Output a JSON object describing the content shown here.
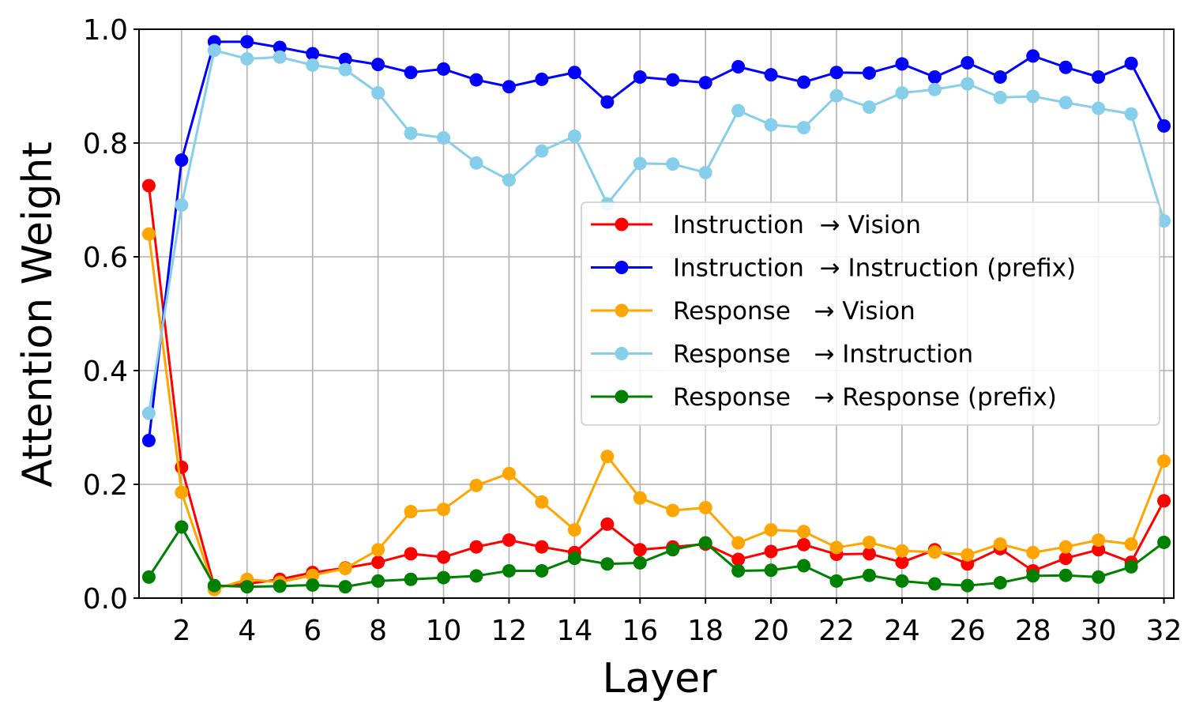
{
  "chart_data": {
    "type": "line",
    "title": "",
    "xlabel": "Layer",
    "ylabel": "Attention Weight",
    "xlim": [
      0.7,
      32.3
    ],
    "ylim": [
      0,
      1.0
    ],
    "x_ticks": [
      2,
      4,
      6,
      8,
      10,
      12,
      14,
      16,
      18,
      20,
      22,
      24,
      26,
      28,
      30,
      32
    ],
    "y_ticks": [
      0.0,
      0.2,
      0.4,
      0.6,
      0.8,
      1.0
    ],
    "y_tick_labels": [
      "0.0",
      "0.2",
      "0.4",
      "0.6",
      "0.8",
      "1.0"
    ],
    "grid": true,
    "legend_position": "center-right",
    "x": [
      1,
      2,
      3,
      4,
      5,
      6,
      7,
      8,
      9,
      10,
      11,
      12,
      13,
      14,
      15,
      16,
      17,
      18,
      19,
      20,
      21,
      22,
      23,
      24,
      25,
      26,
      27,
      28,
      29,
      30,
      31,
      32
    ],
    "series": [
      {
        "name": "Instruction  → Vision",
        "color": "#ff0000",
        "values": [
          0.725,
          0.23,
          0.02,
          0.025,
          0.033,
          0.045,
          0.053,
          0.063,
          0.078,
          0.072,
          0.09,
          0.102,
          0.09,
          0.08,
          0.13,
          0.085,
          0.09,
          0.095,
          0.068,
          0.082,
          0.094,
          0.077,
          0.078,
          0.063,
          0.085,
          0.06,
          0.087,
          0.048,
          0.07,
          0.085,
          0.063,
          0.171
        ]
      },
      {
        "name": "Instruction  → Instruction (prefix)",
        "color": "#0000ff",
        "values": [
          0.277,
          0.77,
          0.978,
          0.978,
          0.968,
          0.957,
          0.947,
          0.938,
          0.924,
          0.93,
          0.911,
          0.899,
          0.912,
          0.924,
          0.872,
          0.916,
          0.911,
          0.906,
          0.934,
          0.92,
          0.907,
          0.924,
          0.923,
          0.939,
          0.916,
          0.941,
          0.916,
          0.953,
          0.933,
          0.916,
          0.94,
          0.83
        ]
      },
      {
        "name": "Response   → Vision",
        "color": "#ffa500",
        "values": [
          0.64,
          0.186,
          0.015,
          0.033,
          0.028,
          0.04,
          0.052,
          0.085,
          0.152,
          0.156,
          0.198,
          0.219,
          0.169,
          0.12,
          0.249,
          0.176,
          0.154,
          0.159,
          0.097,
          0.12,
          0.117,
          0.089,
          0.098,
          0.083,
          0.081,
          0.076,
          0.095,
          0.08,
          0.09,
          0.102,
          0.095,
          0.241
        ]
      },
      {
        "name": "Response   → Instruction",
        "color": "#87ceeb",
        "values": [
          0.325,
          0.691,
          0.963,
          0.948,
          0.951,
          0.937,
          0.929,
          0.888,
          0.817,
          0.809,
          0.765,
          0.735,
          0.786,
          0.812,
          0.693,
          0.764,
          0.763,
          0.748,
          0.857,
          0.832,
          0.827,
          0.883,
          0.863,
          0.888,
          0.894,
          0.904,
          0.88,
          0.882,
          0.871,
          0.861,
          0.851,
          0.663
        ]
      },
      {
        "name": "Response   → Response (prefix)",
        "color": "#008000",
        "values": [
          0.037,
          0.125,
          0.022,
          0.02,
          0.021,
          0.023,
          0.02,
          0.03,
          0.033,
          0.036,
          0.039,
          0.048,
          0.048,
          0.07,
          0.06,
          0.062,
          0.085,
          0.097,
          0.048,
          0.049,
          0.057,
          0.03,
          0.04,
          0.03,
          0.025,
          0.022,
          0.027,
          0.039,
          0.04,
          0.037,
          0.055,
          0.098
        ]
      }
    ]
  }
}
